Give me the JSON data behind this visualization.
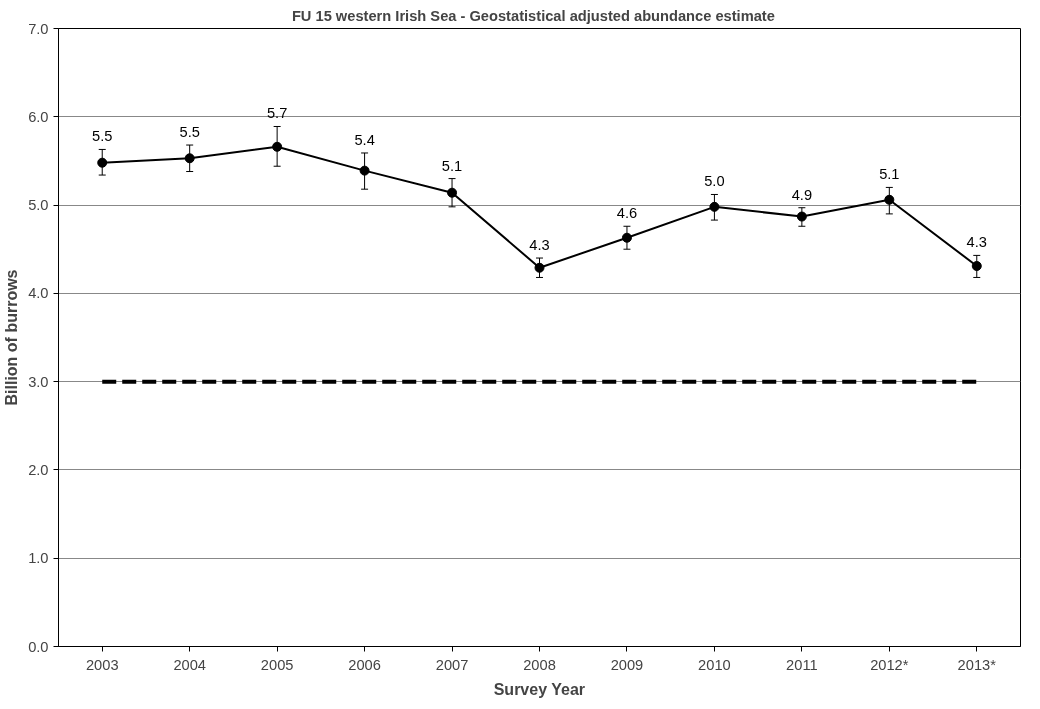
{
  "chart_data": {
    "type": "line",
    "title": "FU 15 western Irish Sea -   Geostatistical  adjusted abundance estimate",
    "xlabel": "Survey Year",
    "ylabel": "Billion of burrows",
    "categories": [
      "2003",
      "2004",
      "2005",
      "2006",
      "2007",
      "2008",
      "2009",
      "2010",
      "2011",
      "2012*",
      "2013*"
    ],
    "series": [
      {
        "color": "#000000",
        "values": [
          5.48,
          5.53,
          5.66,
          5.39,
          5.14,
          4.29,
          4.63,
          4.98,
          4.87,
          5.06,
          4.31
        ],
        "errors": [
          [
            5.34,
            5.63
          ],
          [
            5.38,
            5.68
          ],
          [
            5.44,
            5.89
          ],
          [
            5.18,
            5.59
          ],
          [
            4.98,
            5.3
          ],
          [
            4.18,
            4.4
          ],
          [
            4.5,
            4.76
          ],
          [
            4.83,
            5.12
          ],
          [
            4.76,
            4.97
          ],
          [
            4.9,
            5.2
          ],
          [
            4.18,
            4.43
          ]
        ],
        "value_labels": [
          "5.5",
          "5.5",
          "5.7",
          "5.4",
          "5.1",
          "4.3",
          "4.6",
          "5.0",
          "4.9",
          "5.1",
          "4.3"
        ]
      }
    ],
    "ylim": [
      0,
      7
    ],
    "yticks": [
      {
        "value": 0,
        "label": "0.0"
      },
      {
        "value": 1,
        "label": "1.0"
      },
      {
        "value": 2,
        "label": "2.0"
      },
      {
        "value": 3,
        "label": "3.0"
      },
      {
        "value": 4,
        "label": "4.0"
      },
      {
        "value": 5,
        "label": "5.0"
      },
      {
        "value": 6,
        "label": "6.0"
      },
      {
        "value": 7,
        "label": "7.0"
      }
    ],
    "ref_lines": [
      {
        "axis": "y",
        "value": 3,
        "color": "#000000",
        "line_style": "dashed"
      }
    ],
    "grid": "y",
    "marker": "circle",
    "line_style": "solid"
  }
}
